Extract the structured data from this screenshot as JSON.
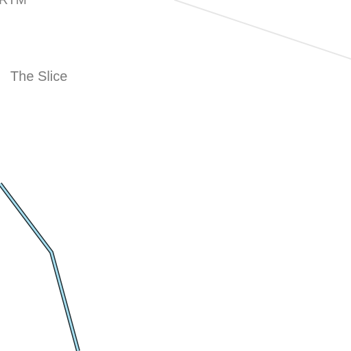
{
  "map": {
    "labels": {
      "top_left": "RTM",
      "place": "The Slice"
    },
    "colors": {
      "background": "#ffffff",
      "road": "#e6e6e6",
      "path_fill": "#a8dff0",
      "path_outline": "#1e2b30",
      "label_text": "#7a7a7a"
    }
  }
}
